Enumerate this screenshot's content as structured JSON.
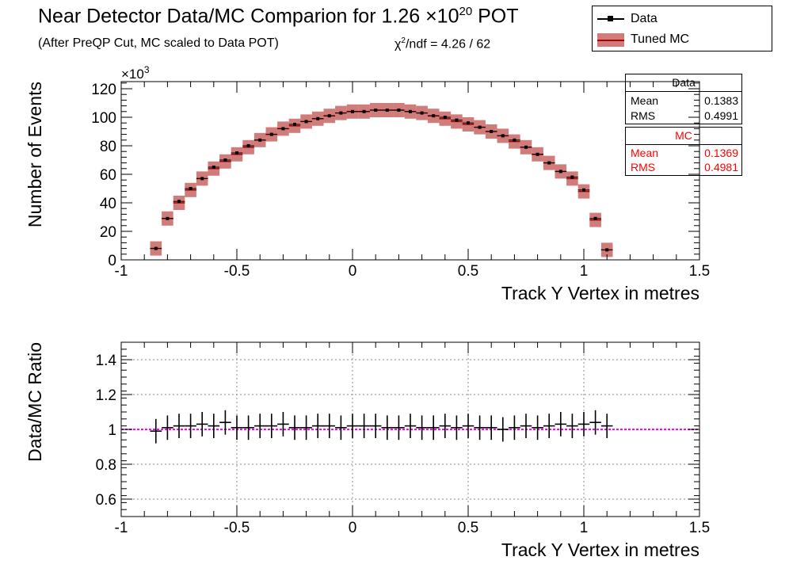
{
  "title": {
    "main": "Near Detector Data/MC Comparion for 1.26 ×10",
    "exp": "20",
    "suffix": " POT"
  },
  "subtitle": "(After PreQP Cut, MC scaled to Data POT)",
  "chi2": {
    "prefix": "χ",
    "exp": "2",
    "text": "/ndf = 4.26 / 62"
  },
  "legend": {
    "data_label": "Data",
    "mc_label": "Tuned MC"
  },
  "stats": {
    "data": {
      "header": "Data",
      "mean_label": "Mean",
      "mean": "0.1383",
      "rms_label": "RMS",
      "rms": "0.4991"
    },
    "mc": {
      "header": "MC",
      "mean_label": "Mean",
      "mean": "0.1369",
      "rms_label": "RMS",
      "rms": "0.4981"
    }
  },
  "colors": {
    "mc_band": "#c0504d",
    "mc_line": "#aa0000",
    "data": "#000000",
    "ratio_line": "#ff00ff",
    "stats_mc": "#ff0000"
  },
  "chart_data": [
    {
      "type": "bar",
      "title": "",
      "xlabel": "Track Y Vertex in metres",
      "ylabel": "Number of Events",
      "y_multiplier": "×10",
      "y_multiplier_exp": "3",
      "xlim": [
        -1,
        1.5
      ],
      "ylim": [
        0,
        125
      ],
      "x_ticks": [
        "-1",
        "-0.5",
        "0",
        "0.5",
        "1",
        "1.5"
      ],
      "y_ticks": [
        "0",
        "20",
        "40",
        "60",
        "80",
        "100",
        "120"
      ],
      "bin_width": 0.05,
      "x": [
        -0.85,
        -0.8,
        -0.75,
        -0.7,
        -0.65,
        -0.6,
        -0.55,
        -0.5,
        -0.45,
        -0.4,
        -0.35,
        -0.3,
        -0.25,
        -0.2,
        -0.15,
        -0.1,
        -0.05,
        0.0,
        0.05,
        0.1,
        0.15,
        0.2,
        0.25,
        0.3,
        0.35,
        0.4,
        0.45,
        0.5,
        0.55,
        0.6,
        0.65,
        0.7,
        0.75,
        0.8,
        0.85,
        0.9,
        0.95,
        1.0,
        1.05,
        1.1
      ],
      "series": [
        {
          "name": "Data",
          "values": [
            8,
            29,
            41,
            50,
            57,
            65,
            70,
            75,
            80,
            84,
            88,
            92,
            95,
            97,
            99,
            101,
            103,
            104,
            104,
            105,
            105,
            105,
            104,
            103,
            101,
            100,
            98,
            96,
            93,
            90,
            87,
            84,
            79,
            74,
            68,
            62,
            58,
            49,
            29,
            7
          ]
        },
        {
          "name": "Tuned MC",
          "values": [
            8,
            29,
            40,
            49,
            57,
            64,
            69,
            74,
            79,
            84,
            88,
            92,
            94,
            97,
            99,
            101,
            103,
            104,
            104,
            105,
            105,
            105,
            104,
            103,
            101,
            99,
            97,
            95,
            93,
            90,
            87,
            83,
            79,
            74,
            68,
            62,
            57,
            48,
            28,
            7
          ],
          "band_halfwidth": 5
        }
      ]
    },
    {
      "type": "scatter",
      "title": "",
      "xlabel": "Track Y Vertex in metres",
      "ylabel": "Data/MC Ratio",
      "xlim": [
        -1,
        1.5
      ],
      "ylim": [
        0.5,
        1.5
      ],
      "x_ticks": [
        "-1",
        "-0.5",
        "0",
        "0.5",
        "1",
        "1.5"
      ],
      "y_ticks": [
        "0.6",
        "0.8",
        "1",
        "1.2",
        "1.4"
      ],
      "grid": true,
      "reference_line": 1,
      "x": [
        -0.85,
        -0.8,
        -0.75,
        -0.7,
        -0.65,
        -0.6,
        -0.55,
        -0.5,
        -0.45,
        -0.4,
        -0.35,
        -0.3,
        -0.25,
        -0.2,
        -0.15,
        -0.1,
        -0.05,
        0.0,
        0.05,
        0.1,
        0.15,
        0.2,
        0.25,
        0.3,
        0.35,
        0.4,
        0.45,
        0.5,
        0.55,
        0.6,
        0.65,
        0.7,
        0.75,
        0.8,
        0.85,
        0.9,
        0.95,
        1.0,
        1.05,
        1.1
      ],
      "series": [
        {
          "name": "Data",
          "values": [
            0.99,
            1.01,
            1.02,
            1.02,
            1.03,
            1.02,
            1.04,
            1.01,
            1.01,
            1.02,
            1.02,
            1.03,
            1.01,
            1.01,
            1.02,
            1.02,
            1.01,
            1.02,
            1.02,
            1.02,
            1.01,
            1.01,
            1.02,
            1.01,
            1.01,
            1.02,
            1.01,
            1.02,
            1.01,
            1.01,
            1.0,
            1.01,
            1.02,
            1.01,
            1.02,
            1.03,
            1.02,
            1.03,
            1.04,
            1.02
          ],
          "err": 0.07
        }
      ]
    }
  ]
}
